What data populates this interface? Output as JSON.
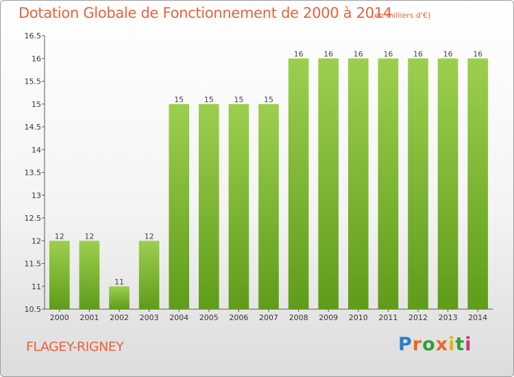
{
  "header": {
    "title": "Dotation Globale de Fonctionnement de 2000 à 2014",
    "subtitle": "(en milliers d'€)"
  },
  "footer": {
    "commune": "FLAGEY-RIGNEY",
    "logo_letters": [
      "P",
      "r",
      "o",
      "x",
      "i",
      "t",
      "i"
    ]
  },
  "colors": {
    "title": "#e8623a",
    "bar_top": "#9dcf4f",
    "bar_bottom": "#5f9c1a"
  },
  "chart_data": {
    "type": "bar",
    "title": "Dotation Globale de Fonctionnement de 2000 à 2014",
    "subtitle": "(en milliers d'€)",
    "xlabel": "",
    "ylabel": "",
    "categories": [
      "2000",
      "2001",
      "2002",
      "2003",
      "2004",
      "2005",
      "2006",
      "2007",
      "2008",
      "2009",
      "2010",
      "2011",
      "2012",
      "2013",
      "2014"
    ],
    "values": [
      12,
      12,
      11,
      12,
      15,
      15,
      15,
      15,
      16,
      16,
      16,
      16,
      16,
      16,
      16
    ],
    "data_labels": [
      "12",
      "12",
      "11",
      "12",
      "15",
      "15",
      "15",
      "15",
      "16",
      "16",
      "16",
      "16",
      "16",
      "16",
      "16"
    ],
    "ylim": [
      10.5,
      16.5
    ],
    "yticks": [
      10.5,
      11,
      11.5,
      12,
      12.5,
      13,
      13.5,
      14,
      14.5,
      15,
      15.5,
      16,
      16.5
    ],
    "ytick_labels": [
      "10.5",
      "11",
      "11.5",
      "12",
      "12.5",
      "13",
      "13.5",
      "14",
      "14.5",
      "15",
      "15.5",
      "16",
      "16.5"
    ],
    "grid": false,
    "legend": "none"
  }
}
